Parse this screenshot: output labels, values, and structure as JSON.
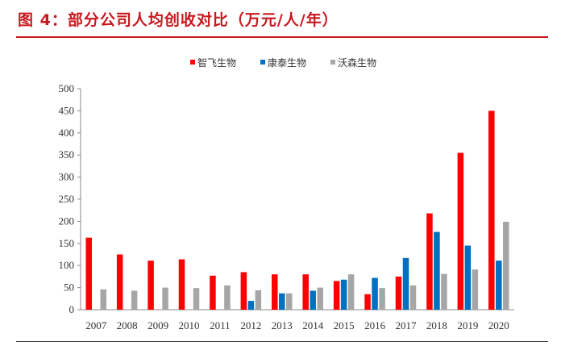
{
  "figure": {
    "title": "图 4：部分公司人均创收对比（万元/人/年）"
  },
  "chart_data": {
    "type": "bar",
    "title": "",
    "xlabel": "",
    "ylabel": "",
    "ylim": [
      0,
      500
    ],
    "yticks": [
      0,
      50,
      100,
      150,
      200,
      250,
      300,
      350,
      400,
      450,
      500
    ],
    "grid": false,
    "legend_position": "top-center",
    "categories": [
      "2007",
      "2008",
      "2009",
      "2010",
      "2011",
      "2012",
      "2013",
      "2014",
      "2015",
      "2016",
      "2017",
      "2018",
      "2019",
      "2020"
    ],
    "series": [
      {
        "name": "智飞生物",
        "color": "#ff0000",
        "values": [
          163,
          125,
          111,
          114,
          77,
          85,
          80,
          80,
          65,
          35,
          75,
          218,
          355,
          450
        ]
      },
      {
        "name": "康泰生物",
        "color": "#0070c0",
        "values": [
          null,
          null,
          null,
          null,
          null,
          20,
          37,
          43,
          68,
          72,
          117,
          176,
          145,
          111
        ]
      },
      {
        "name": "沃森生物",
        "color": "#a6a6a6",
        "values": [
          46,
          43,
          50,
          49,
          55,
          44,
          37,
          50,
          80,
          49,
          55,
          81,
          91,
          199
        ]
      }
    ]
  }
}
